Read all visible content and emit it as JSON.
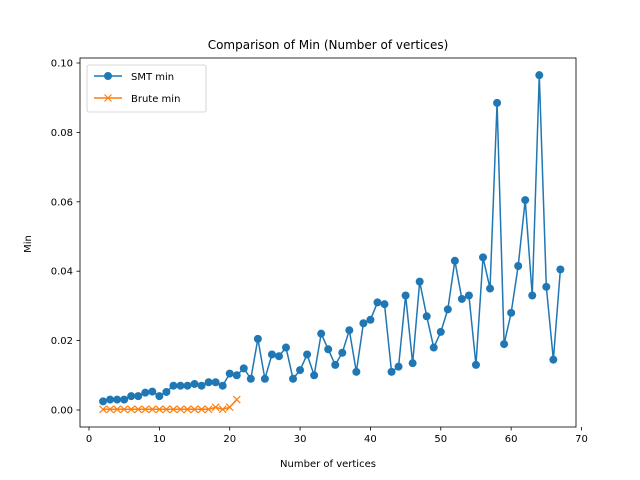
{
  "chart_data": {
    "type": "line",
    "title": "Comparison of Min (Number of vertices)",
    "xlabel": "Number of vertices",
    "ylabel": "Min",
    "xlim": [
      0,
      70
    ],
    "ylim": [
      0,
      0.1
    ],
    "xticks": [
      0,
      10,
      20,
      30,
      40,
      50,
      60,
      70
    ],
    "yticks": [
      0.0,
      0.02,
      0.04,
      0.06,
      0.08,
      0.1
    ],
    "xtick_labels": [
      "0",
      "10",
      "20",
      "30",
      "40",
      "50",
      "60",
      "70"
    ],
    "ytick_labels": [
      "0.00",
      "0.02",
      "0.04",
      "0.06",
      "0.08",
      "0.10"
    ],
    "grid": false,
    "legend_position": "top-left",
    "series": [
      {
        "name": "SMT min",
        "color": "#1f77b4",
        "marker": "circle",
        "x": [
          2,
          3,
          4,
          5,
          6,
          7,
          8,
          9,
          10,
          11,
          12,
          13,
          14,
          15,
          16,
          17,
          18,
          19,
          20,
          21,
          22,
          23,
          24,
          25,
          26,
          27,
          28,
          29,
          30,
          31,
          32,
          33,
          34,
          35,
          36,
          37,
          38,
          39,
          40,
          41,
          42,
          43,
          44,
          45,
          46,
          47,
          48,
          49,
          50,
          51,
          52,
          53,
          54,
          55,
          56,
          57,
          58,
          59,
          60,
          61,
          62,
          63,
          64,
          65,
          66,
          67
        ],
        "y": [
          0.0025,
          0.003,
          0.003,
          0.003,
          0.004,
          0.004,
          0.005,
          0.0053,
          0.004,
          0.0052,
          0.007,
          0.007,
          0.007,
          0.0075,
          0.007,
          0.008,
          0.008,
          0.007,
          0.0105,
          0.01,
          0.012,
          0.009,
          0.0205,
          0.009,
          0.016,
          0.0155,
          0.018,
          0.009,
          0.0115,
          0.016,
          0.01,
          0.022,
          0.0175,
          0.013,
          0.0165,
          0.023,
          0.011,
          0.025,
          0.026,
          0.031,
          0.0305,
          0.011,
          0.0125,
          0.033,
          0.0135,
          0.037,
          0.027,
          0.018,
          0.0225,
          0.029,
          0.043,
          0.032,
          0.033,
          0.013,
          0.044,
          0.035,
          0.0885,
          0.019,
          0.028,
          0.0415,
          0.0605,
          0.033,
          0.0965,
          0.0355,
          0.0145,
          0.0405
        ]
      },
      {
        "name": "Brute min",
        "color": "#ff7f0e",
        "marker": "x",
        "x": [
          2,
          3,
          4,
          5,
          6,
          7,
          8,
          9,
          10,
          11,
          12,
          13,
          14,
          15,
          16,
          17,
          18,
          19,
          20,
          21
        ],
        "y": [
          0.0002,
          0.0002,
          0.0002,
          0.0002,
          0.0002,
          0.0002,
          0.0002,
          0.0002,
          0.0002,
          0.0002,
          0.0002,
          0.0002,
          0.0002,
          0.0002,
          0.0002,
          0.0002,
          0.0008,
          0.0002,
          0.0008,
          0.003
        ]
      }
    ]
  }
}
